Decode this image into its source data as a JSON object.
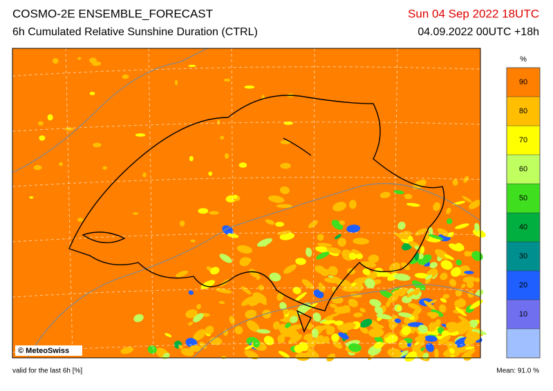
{
  "header": {
    "title": "COSMO-2E ENSEMBLE_FORECAST",
    "subtitle": "6h Cumulated Relative Sunshine Duration (CTRL)",
    "valid_time": "Sun 04 Sep 2022 18UTC",
    "run_info": "04.09.2022 00UTC +18h"
  },
  "map": {
    "copyright": "© MeteoSwiss"
  },
  "colorbar": {
    "unit": "%",
    "lim": [
      0,
      100
    ],
    "ticks": [
      10,
      20,
      30,
      40,
      50,
      60,
      70,
      80,
      90
    ],
    "colors": [
      "#9fbfff",
      "#6f6fef",
      "#1f5fff",
      "#008f8f",
      "#00af3f",
      "#3fdf1f",
      "#bfff5f",
      "#ffff00",
      "#ffbf00",
      "#ff7f00"
    ]
  },
  "footer": {
    "note": "valid for the last 6h [%]",
    "mean": "Mean:  91.0 %"
  }
}
